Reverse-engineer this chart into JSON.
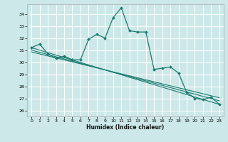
{
  "title": "",
  "xlabel": "Humidex (Indice chaleur)",
  "ylabel": "",
  "bg_color": "#cce8e8",
  "grid_color": "#ffffff",
  "line_color": "#1a7a6e",
  "xlim": [
    -0.5,
    23.5
  ],
  "ylim": [
    25.5,
    34.8
  ],
  "yticks": [
    26,
    27,
    28,
    29,
    30,
    31,
    32,
    33,
    34
  ],
  "xticks": [
    0,
    1,
    2,
    3,
    4,
    5,
    6,
    7,
    8,
    9,
    10,
    11,
    12,
    13,
    14,
    15,
    16,
    17,
    18,
    19,
    20,
    21,
    22,
    23
  ],
  "series": [
    [
      0,
      31.2
    ],
    [
      1,
      31.5
    ],
    [
      2,
      30.7
    ],
    [
      3,
      30.3
    ],
    [
      4,
      30.5
    ],
    [
      5,
      30.2
    ],
    [
      6,
      30.2
    ],
    [
      7,
      31.9
    ],
    [
      8,
      32.3
    ],
    [
      9,
      32.0
    ],
    [
      10,
      33.7
    ],
    [
      11,
      34.5
    ],
    [
      12,
      32.6
    ],
    [
      13,
      32.5
    ],
    [
      14,
      32.5
    ],
    [
      15,
      29.4
    ],
    [
      16,
      29.5
    ],
    [
      17,
      29.6
    ],
    [
      18,
      29.1
    ],
    [
      19,
      27.5
    ],
    [
      20,
      27.0
    ],
    [
      21,
      26.9
    ],
    [
      22,
      27.1
    ],
    [
      23,
      26.5
    ]
  ],
  "trend_lines": [
    {
      "x0": 0,
      "y0": 31.2,
      "x1": 23,
      "y1": 26.5
    },
    {
      "x0": 0,
      "y0": 31.0,
      "x1": 23,
      "y1": 26.8
    },
    {
      "x0": 0,
      "y0": 30.85,
      "x1": 23,
      "y1": 27.05
    }
  ]
}
